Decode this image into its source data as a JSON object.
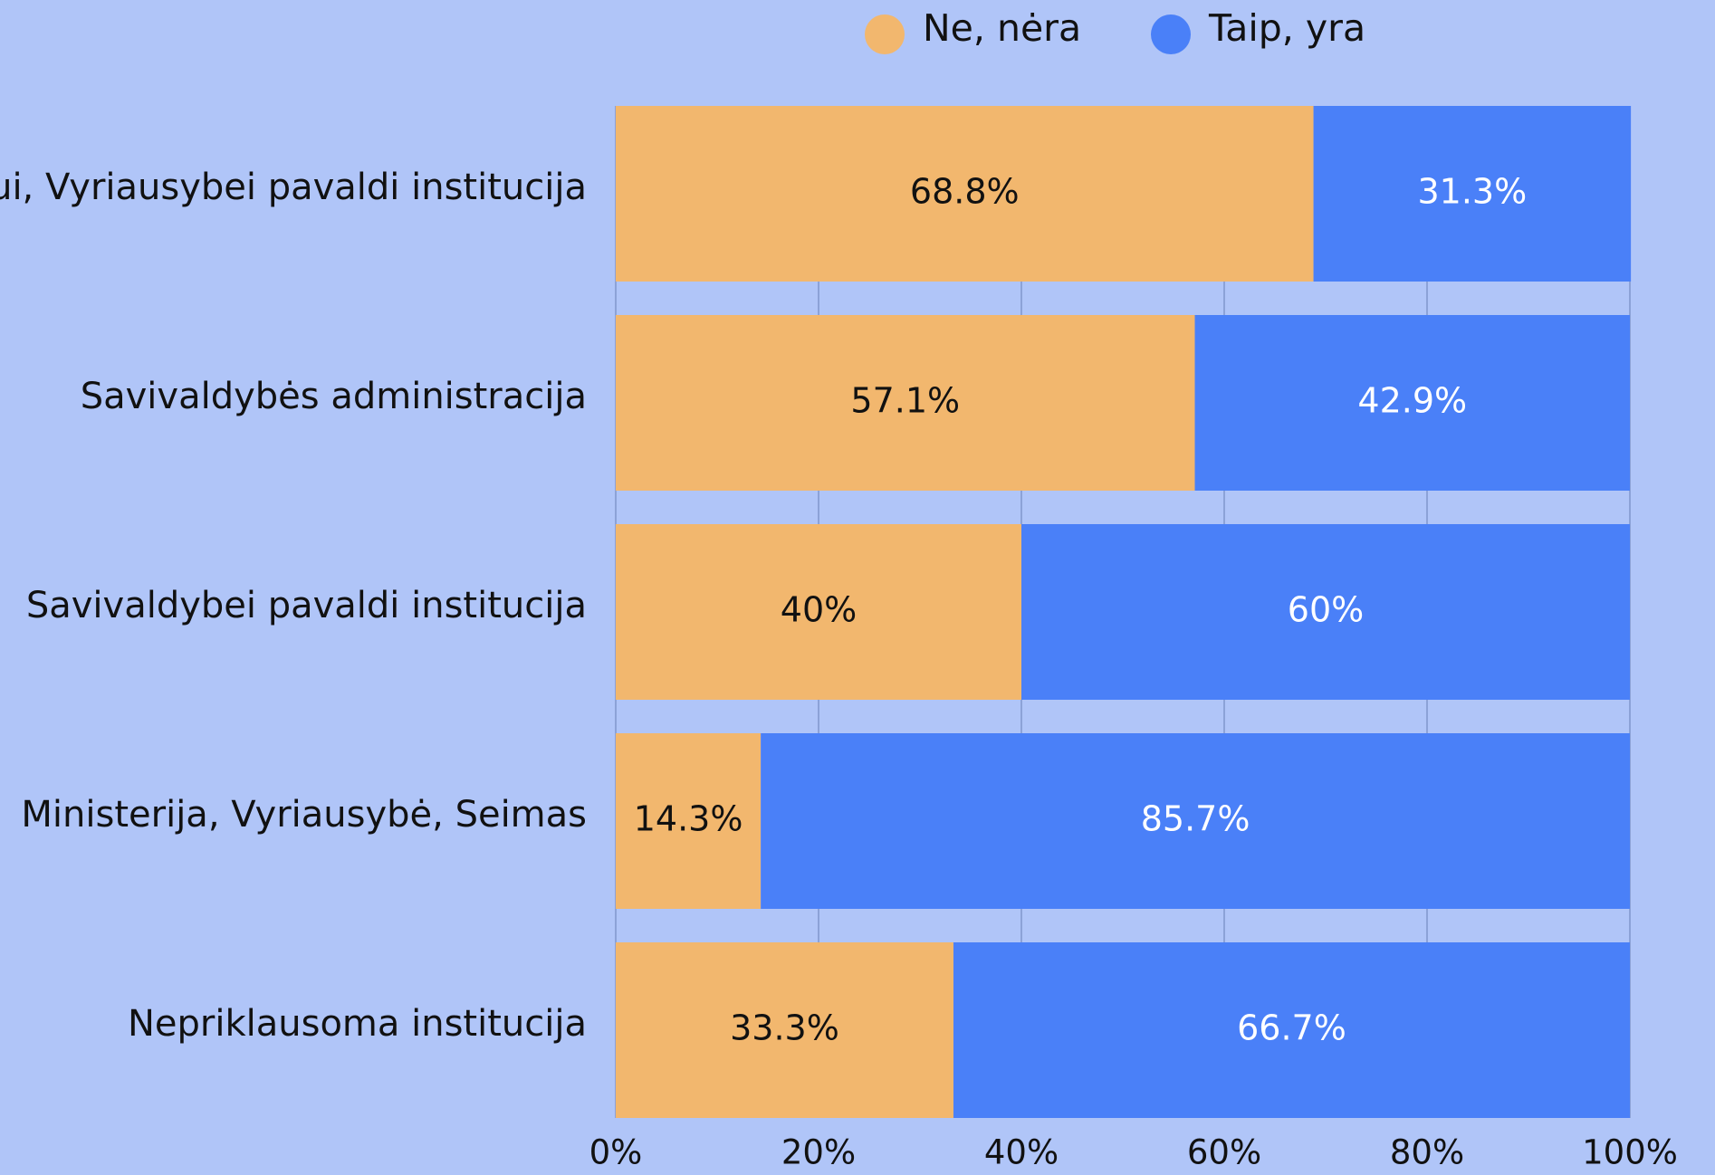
{
  "chart_data": {
    "type": "stacked_barh",
    "categories": [
      "ui, Vyriausybei pavaldi institucija",
      "Savivaldybės administracija",
      "Savivaldybei pavaldi institucija",
      "Ministerija, Vyriausybė, Seimas",
      "Nepriklausoma institucija"
    ],
    "series": [
      {
        "name": "Ne, nėra",
        "color": "#f2b76e",
        "values": [
          68.8,
          57.1,
          40,
          14.3,
          33.3
        ],
        "value_labels": [
          "68.8%",
          "57.1%",
          "40%",
          "14.3%",
          "33.3%"
        ]
      },
      {
        "name": "Taip, yra",
        "color": "#4a80f8",
        "values": [
          31.3,
          42.9,
          60,
          85.7,
          66.7
        ],
        "value_labels": [
          "31.3%",
          "42.9%",
          "60%",
          "85.7%",
          "66.7%"
        ]
      }
    ],
    "xlim": [
      0,
      100
    ],
    "xticks": [
      {
        "value": 0,
        "label": "0%"
      },
      {
        "value": 20,
        "label": "20%"
      },
      {
        "value": 40,
        "label": "40%"
      },
      {
        "value": 60,
        "label": "60%"
      },
      {
        "value": 80,
        "label": "80%"
      },
      {
        "value": 100,
        "label": "100%"
      }
    ],
    "grid": true,
    "legend": "top"
  }
}
